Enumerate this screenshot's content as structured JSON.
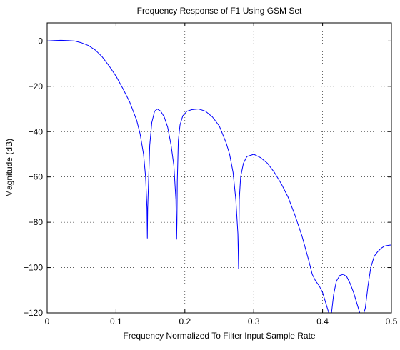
{
  "chart_data": {
    "type": "line",
    "title": "Frequency Response of F1 Using GSM Set",
    "xlabel": "Frequency Normalized To Filter Input Sample Rate",
    "ylabel": "Magnitude (dB)",
    "xlim": [
      0,
      0.5
    ],
    "ylim": [
      -120,
      8
    ],
    "x_ticks": [
      0,
      0.1,
      0.2,
      0.3,
      0.4,
      0.5
    ],
    "x_tick_labels": [
      "0",
      "0.1",
      "0.2",
      "0.3",
      "0.4",
      "0.5"
    ],
    "y_ticks": [
      0,
      -20,
      -40,
      -60,
      -80,
      -100,
      -120
    ],
    "y_tick_labels": [
      "0",
      "−20",
      "−40",
      "−60",
      "−80",
      "−100",
      "−120"
    ],
    "grid": "dotted",
    "series": [
      {
        "color": "#0000ff",
        "x": [
          0,
          0.01,
          0.02,
          0.03,
          0.04,
          0.05,
          0.06,
          0.07,
          0.08,
          0.09,
          0.1,
          0.11,
          0.12,
          0.125,
          0.13,
          0.135,
          0.14,
          0.143,
          0.145,
          0.1455,
          0.146,
          0.149,
          0.152,
          0.156,
          0.16,
          0.165,
          0.17,
          0.175,
          0.18,
          0.184,
          0.187,
          0.188,
          0.1885,
          0.189,
          0.1905,
          0.193,
          0.197,
          0.203,
          0.21,
          0.22,
          0.23,
          0.24,
          0.25,
          0.26,
          0.265,
          0.27,
          0.274,
          0.277,
          0.278,
          0.2785,
          0.279,
          0.281,
          0.285,
          0.29,
          0.3,
          0.31,
          0.32,
          0.33,
          0.34,
          0.35,
          0.36,
          0.37,
          0.38,
          0.385,
          0.39,
          0.395,
          0.4,
          0.405,
          0.41,
          0.413,
          0.416,
          0.42,
          0.425,
          0.43,
          0.435,
          0.44,
          0.445,
          0.45,
          0.455,
          0.458,
          0.462,
          0.466,
          0.47,
          0.475,
          0.48,
          0.485,
          0.49,
          0.495,
          0.5
        ],
        "y": [
          0,
          0.2,
          0.3,
          0.2,
          0,
          -0.8,
          -2,
          -4,
          -7,
          -11,
          -15.5,
          -21,
          -27,
          -31,
          -35,
          -41,
          -50,
          -60,
          -74,
          -87,
          -74,
          -46,
          -36,
          -31,
          -30,
          -31,
          -33.5,
          -38,
          -46,
          -55,
          -70,
          -87.5,
          -80,
          -62,
          -44,
          -37,
          -33,
          -31,
          -30.3,
          -30,
          -31,
          -33.5,
          -37.5,
          -45,
          -50,
          -58,
          -70,
          -85,
          -100.5,
          -85,
          -70,
          -60,
          -54,
          -51,
          -50,
          -51.5,
          -54,
          -58,
          -63,
          -69,
          -77,
          -86,
          -97,
          -103,
          -106,
          -108,
          -111,
          -116,
          -121,
          -120,
          -112,
          -106,
          -103.5,
          -103,
          -104,
          -107,
          -111,
          -116,
          -121,
          -122,
          -118,
          -108,
          -100,
          -95,
          -93,
          -91.5,
          -90.5,
          -90.2,
          -90
        ]
      }
    ]
  }
}
